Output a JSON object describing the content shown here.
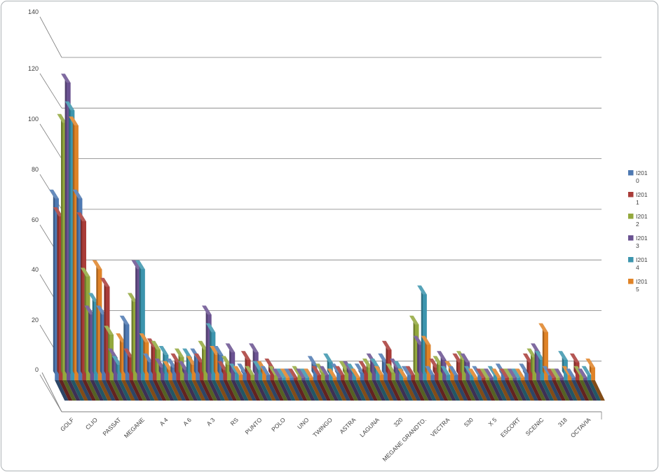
{
  "window": {
    "background": "#ffffff",
    "frame_border_color": "#aeb3b6",
    "gridline_color": "#7f7f7f",
    "text_color": "#3f3f3f"
  },
  "chart_data": {
    "type": "bar",
    "subtype": "3d-clustered-column",
    "title": "",
    "xlabel": "",
    "ylabel": "",
    "ylim": [
      0,
      140
    ],
    "yticks": [
      0,
      20,
      40,
      60,
      80,
      100,
      120,
      140
    ],
    "grid": true,
    "legend_position": "right",
    "categories": [
      "GOLF",
      "CLIO",
      "PASSAT",
      "MEGANE",
      "A 4",
      "A 6",
      "A 3",
      "RS",
      "PUNTO",
      "POLO",
      "UNO",
      "TWINGO",
      "ASTRA",
      "LAGUNA",
      "320",
      "MEGANE GRANDTO.",
      "VECTRA",
      "530",
      "X 5",
      "ESCORT",
      "SCENIC",
      "318",
      "OCTAVIA"
    ],
    "series": [
      {
        "name": "I2010",
        "color": "#4E79B2",
        "values": [
          72,
          72,
          26,
          22,
          7,
          5,
          9,
          10,
          3,
          2,
          1,
          6,
          3,
          3,
          7,
          2,
          2,
          2,
          2,
          3,
          3,
          2,
          1
        ]
      },
      {
        "name": "I2011",
        "color": "#A93C38",
        "values": [
          65,
          63,
          37,
          9,
          13,
          7,
          7,
          4,
          8,
          5,
          1,
          2,
          2,
          4,
          12,
          2,
          5,
          7,
          1,
          1,
          7,
          1,
          7
        ]
      },
      {
        "name": "I2012",
        "color": "#93A83D",
        "values": [
          102,
          41,
          18,
          31,
          12,
          9,
          12,
          6,
          2,
          2,
          2,
          3,
          4,
          5,
          3,
          22,
          6,
          8,
          1,
          1,
          9,
          1,
          2
        ]
      },
      {
        "name": "I2013",
        "color": "#6A5291",
        "values": [
          118,
          26,
          9,
          44,
          5,
          4,
          26,
          11,
          11,
          1,
          1,
          2,
          4,
          7,
          5,
          14,
          8,
          7,
          1,
          1,
          11,
          1,
          1
        ]
      },
      {
        "name": "I2014",
        "color": "#3C95AE",
        "values": [
          107,
          31,
          6,
          44,
          10,
          9,
          19,
          3,
          4,
          1,
          1,
          7,
          3,
          5,
          4,
          34,
          2,
          2,
          2,
          1,
          8,
          8,
          2
        ]
      },
      {
        "name": "I2015",
        "color": "#E08327",
        "values": [
          101,
          44,
          15,
          15,
          4,
          6,
          10,
          2,
          4,
          1,
          1,
          1,
          1,
          2,
          1,
          14,
          4,
          1,
          1,
          1,
          19,
          2,
          5
        ]
      }
    ]
  },
  "y_axis": {
    "tick_labels": [
      "140",
      "120",
      "100",
      "80",
      "60",
      "40",
      "20",
      "0"
    ]
  },
  "legend": {
    "items": [
      {
        "label": "I2010",
        "color": "#4E79B2"
      },
      {
        "label": "I2011",
        "color": "#A93C38"
      },
      {
        "label": "I2012",
        "color": "#93A83D"
      },
      {
        "label": "I2013",
        "color": "#6A5291"
      },
      {
        "label": "I2014",
        "color": "#3C95AE"
      },
      {
        "label": "I2015",
        "color": "#E08327"
      }
    ]
  }
}
